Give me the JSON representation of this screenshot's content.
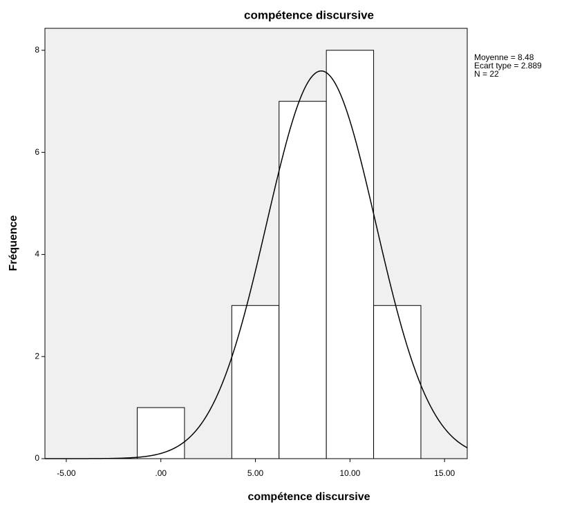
{
  "chart_data": {
    "type": "histogram",
    "title": "compétence discursive",
    "x_label": "compétence discursive",
    "y_label": "Fréquence",
    "bins": [
      -1.25,
      1.25,
      3.75,
      6.25,
      8.75,
      11.25,
      13.75
    ],
    "counts": [
      1,
      0,
      3,
      7,
      8,
      3
    ],
    "color": "#ffffff",
    "background": "#f0f0f0",
    "xlim": [
      -6.13,
      16.2
    ],
    "ylim": [
      0,
      8.43
    ],
    "xticks": [
      {
        "value": -5,
        "label": "-5.00"
      },
      {
        "value": 0,
        "label": ".00"
      },
      {
        "value": 5,
        "label": "5.00"
      },
      {
        "value": 10,
        "label": "10.00"
      },
      {
        "value": 15,
        "label": "15.00"
      }
    ],
    "yticks": [
      0,
      2,
      4,
      6,
      8
    ],
    "grid": false,
    "normal_curve": true,
    "stats": [
      {
        "label": "Moyenne = 8.48",
        "value": 8.48
      },
      {
        "label": "Ecart type = 2.889",
        "value": 2.889
      },
      {
        "label": "N = 22",
        "value": 22
      }
    ]
  }
}
